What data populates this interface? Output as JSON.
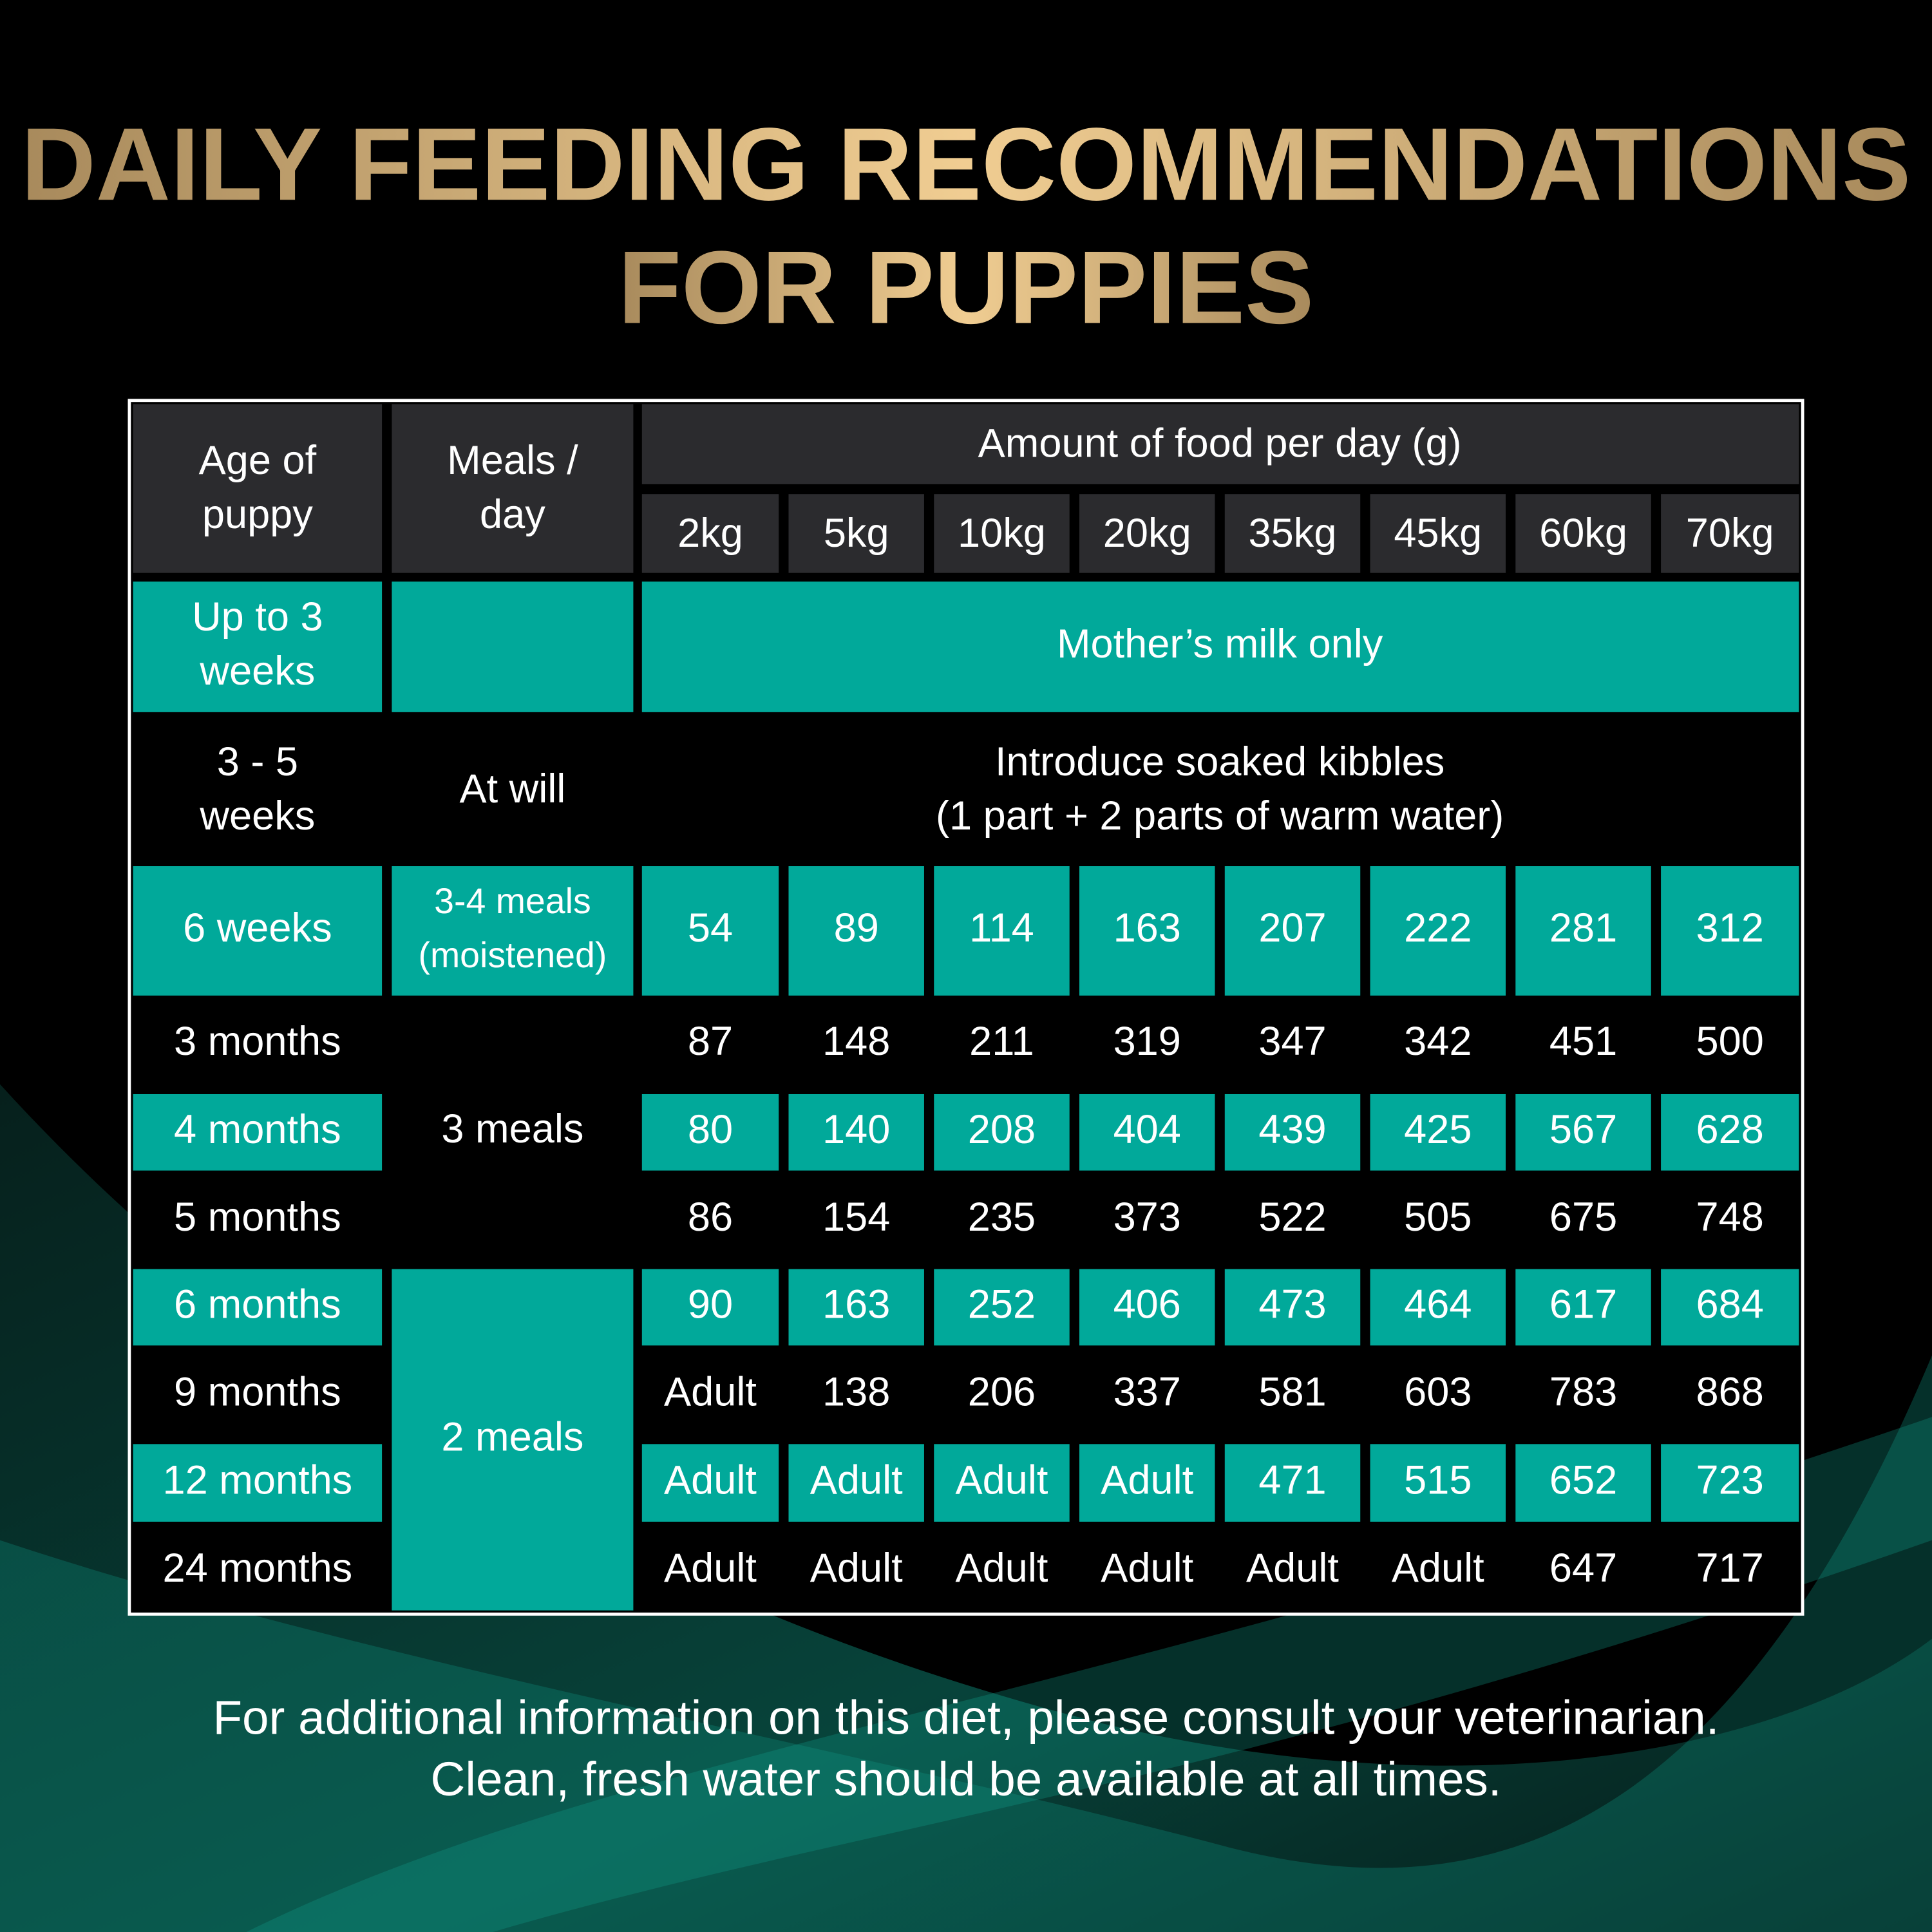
{
  "header": {
    "title": [
      "DAILY FEEDING RECOMMENDATIONS",
      "FOR PUPPIES"
    ]
  },
  "table": {
    "age_header": [
      "Age of",
      "puppy"
    ],
    "meals_header": [
      "Meals /",
      "day"
    ],
    "amount_header": "Amount of food per day (g)",
    "weights": [
      "2kg",
      "5kg",
      "10kg",
      "20kg",
      "35kg",
      "45kg",
      "60kg",
      "70kg"
    ],
    "rows": [
      {
        "age": [
          "Up to 3",
          "weeks"
        ],
        "note": [
          "Mother’s milk only"
        ]
      },
      {
        "age": [
          "3 - 5",
          "weeks"
        ],
        "meals": [
          "At will"
        ],
        "note": [
          "Introduce soaked kibbles",
          "(1 part + 2 parts of warm water)"
        ]
      },
      {
        "age": [
          "6 weeks"
        ],
        "meals": [
          "3-4 meals",
          "(moistened)"
        ],
        "values": [
          54,
          89,
          114,
          163,
          207,
          222,
          281,
          312
        ]
      },
      {
        "age": [
          "3 months"
        ],
        "values": [
          87,
          148,
          211,
          319,
          347,
          342,
          451,
          500
        ]
      },
      {
        "age": [
          "4 months"
        ],
        "meals": [
          "3 meals"
        ],
        "values": [
          80,
          140,
          208,
          404,
          439,
          425,
          567,
          628
        ]
      },
      {
        "age": [
          "5 months"
        ],
        "values": [
          86,
          154,
          235,
          373,
          522,
          505,
          675,
          748
        ]
      },
      {
        "age": [
          "6 months"
        ],
        "values": [
          90,
          163,
          252,
          406,
          473,
          464,
          617,
          684
        ]
      },
      {
        "age": [
          "9 months"
        ],
        "meals": [
          "2 meals"
        ],
        "values": [
          "Adult",
          138,
          206,
          337,
          581,
          603,
          783,
          868
        ]
      },
      {
        "age": [
          "12 months"
        ],
        "values": [
          "Adult",
          "Adult",
          "Adult",
          "Adult",
          471,
          515,
          652,
          723
        ]
      },
      {
        "age": [
          "24 months"
        ],
        "values": [
          "Adult",
          "Adult",
          "Adult",
          "Adult",
          "Adult",
          "Adult",
          647,
          717
        ]
      }
    ]
  },
  "footer": [
    "For additional information on this diet, please consult your veterinarian.",
    "Clean, fresh water should be available at all times."
  ]
}
